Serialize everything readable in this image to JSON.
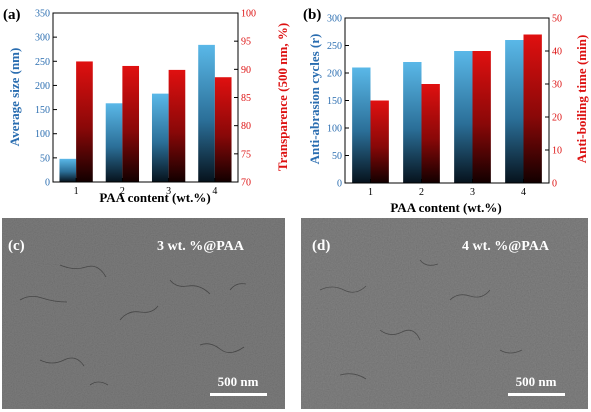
{
  "colors": {
    "blue_top": "#5ab8e8",
    "blue_bottom": "#06121c",
    "red_top": "#e01010",
    "red_bottom": "#120000",
    "left_axis": "#2a6db0",
    "right_axis": "#dd1111",
    "sem_base": "#7d7d7d"
  },
  "panel_a": {
    "label": "(a)",
    "left_ylabel": "Average size (nm)",
    "right_ylabel": "Transparence (500 nm, %)",
    "xlabel": "PAA content (wt.%)",
    "left_ticks": [
      "0",
      "50",
      "100",
      "150",
      "200",
      "250",
      "300",
      "350"
    ],
    "right_ticks": [
      "70",
      "75",
      "80",
      "85",
      "90",
      "95",
      "100"
    ],
    "x_ticks": [
      "1",
      "2",
      "3",
      "4"
    ]
  },
  "panel_b": {
    "label": "(b)",
    "left_ylabel": "Anti-abrasion cycles (r)",
    "right_ylabel": "Anti-boiling time (min)",
    "xlabel": "PAA content (wt.%)",
    "left_ticks": [
      "0",
      "50",
      "100",
      "150",
      "200",
      "250",
      "300"
    ],
    "right_ticks": [
      "0",
      "10",
      "20",
      "30",
      "40",
      "50"
    ],
    "x_ticks": [
      "1",
      "2",
      "3",
      "4"
    ]
  },
  "panel_c": {
    "label": "(c)",
    "caption": "3 wt. %@PAA",
    "scale": "500 nm"
  },
  "panel_d": {
    "label": "(d)",
    "caption": "4 wt. %@PAA",
    "scale": "500 nm"
  },
  "chart_data": [
    {
      "type": "bar",
      "panel": "(a)",
      "categories": [
        "1",
        "2",
        "3",
        "4"
      ],
      "xlabel": "PAA content (wt.%)",
      "series": [
        {
          "name": "Average size (nm)",
          "axis": "left",
          "values": [
            48,
            163,
            183,
            284
          ]
        },
        {
          "name": "Transparence (500 nm, %)",
          "axis": "right",
          "values": [
            91.4,
            90.6,
            89.9,
            88.6
          ]
        }
      ],
      "ylabel": "Average size (nm)",
      "ylim": [
        0,
        350
      ],
      "y2label": "Transparence (500 nm, %)",
      "y2lim": [
        70,
        100
      ]
    },
    {
      "type": "bar",
      "panel": "(b)",
      "categories": [
        "1",
        "2",
        "3",
        "4"
      ],
      "xlabel": "PAA content (wt.%)",
      "series": [
        {
          "name": "Anti-abrasion cycles (r)",
          "axis": "left",
          "values": [
            210,
            220,
            240,
            260
          ]
        },
        {
          "name": "Anti-boiling time (min)",
          "axis": "right",
          "values": [
            25,
            30,
            40,
            45
          ]
        }
      ],
      "ylabel": "Anti-abrasion cycles (r)",
      "ylim": [
        0,
        300
      ],
      "y2label": "Anti-boiling time (min)",
      "y2lim": [
        0,
        50
      ]
    }
  ]
}
